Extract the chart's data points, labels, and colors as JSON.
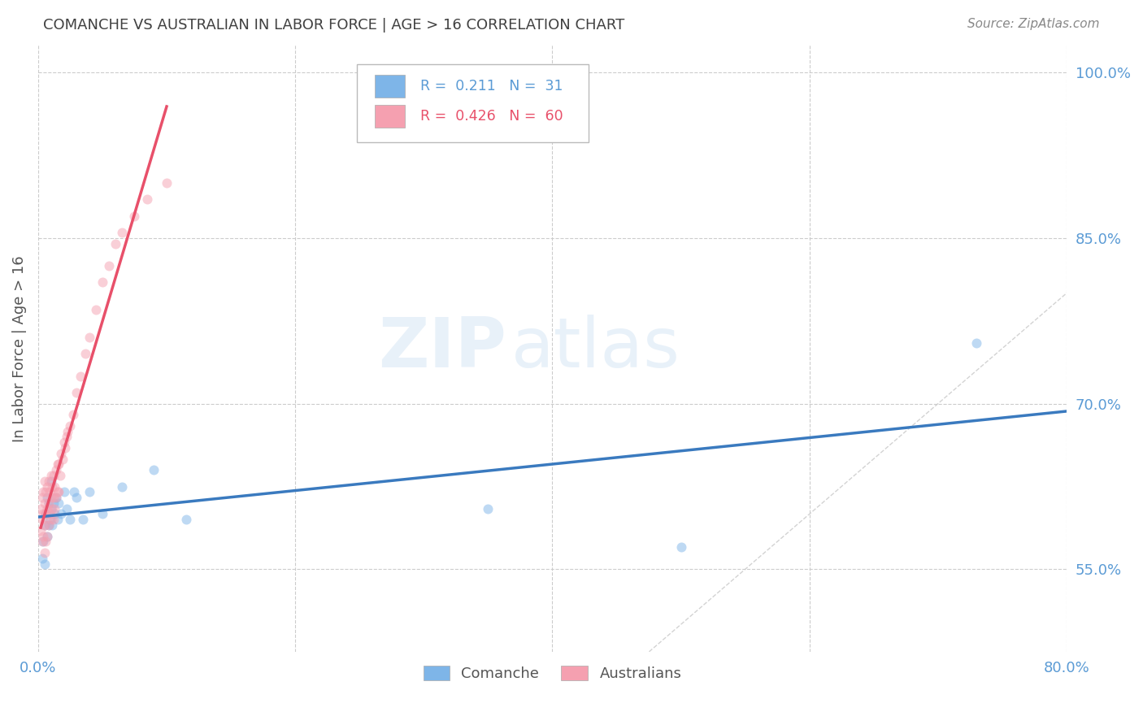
{
  "title": "COMANCHE VS AUSTRALIAN IN LABOR FORCE | AGE > 16 CORRELATION CHART",
  "source": "Source: ZipAtlas.com",
  "ylabel": "In Labor Force | Age > 16",
  "xlim": [
    0.0,
    0.8
  ],
  "ylim": [
    0.475,
    1.025
  ],
  "xticks": [
    0.0,
    0.8
  ],
  "xticklabels": [
    "0.0%",
    "80.0%"
  ],
  "yticks_right": [
    0.55,
    0.7,
    0.85,
    1.0
  ],
  "yticklabels_right": [
    "55.0%",
    "70.0%",
    "85.0%",
    "100.0%"
  ],
  "watermark_zip": "ZIP",
  "watermark_atlas": "atlas",
  "comanche_x": [
    0.003,
    0.004,
    0.005,
    0.005,
    0.006,
    0.007,
    0.007,
    0.008,
    0.008,
    0.009,
    0.01,
    0.01,
    0.011,
    0.012,
    0.013,
    0.014,
    0.015,
    0.016,
    0.018,
    0.02,
    0.022,
    0.025,
    0.028,
    0.03,
    0.035,
    0.04,
    0.05,
    0.065,
    0.09,
    0.115,
    0.35,
    0.5,
    0.73
  ],
  "comanche_y": [
    0.56,
    0.575,
    0.59,
    0.555,
    0.6,
    0.58,
    0.615,
    0.59,
    0.61,
    0.595,
    0.605,
    0.63,
    0.59,
    0.61,
    0.6,
    0.615,
    0.595,
    0.61,
    0.6,
    0.62,
    0.605,
    0.595,
    0.62,
    0.615,
    0.595,
    0.62,
    0.6,
    0.625,
    0.64,
    0.595,
    0.605,
    0.57,
    0.755
  ],
  "australians_x": [
    0.002,
    0.002,
    0.003,
    0.003,
    0.003,
    0.004,
    0.004,
    0.004,
    0.005,
    0.005,
    0.005,
    0.005,
    0.006,
    0.006,
    0.006,
    0.007,
    0.007,
    0.007,
    0.008,
    0.008,
    0.008,
    0.009,
    0.009,
    0.01,
    0.01,
    0.01,
    0.011,
    0.011,
    0.012,
    0.012,
    0.012,
    0.013,
    0.013,
    0.014,
    0.014,
    0.015,
    0.015,
    0.016,
    0.016,
    0.017,
    0.018,
    0.019,
    0.02,
    0.021,
    0.022,
    0.023,
    0.025,
    0.027,
    0.03,
    0.033,
    0.037,
    0.04,
    0.045,
    0.05,
    0.055,
    0.06,
    0.065,
    0.075,
    0.085,
    0.1
  ],
  "australians_y": [
    0.585,
    0.605,
    0.575,
    0.595,
    0.615,
    0.58,
    0.6,
    0.62,
    0.565,
    0.59,
    0.61,
    0.63,
    0.575,
    0.6,
    0.62,
    0.58,
    0.605,
    0.625,
    0.59,
    0.61,
    0.63,
    0.6,
    0.62,
    0.595,
    0.615,
    0.635,
    0.605,
    0.625,
    0.595,
    0.615,
    0.635,
    0.605,
    0.625,
    0.615,
    0.64,
    0.62,
    0.645,
    0.62,
    0.645,
    0.635,
    0.655,
    0.65,
    0.665,
    0.66,
    0.67,
    0.675,
    0.68,
    0.69,
    0.71,
    0.725,
    0.745,
    0.76,
    0.785,
    0.81,
    0.825,
    0.845,
    0.855,
    0.87,
    0.885,
    0.9
  ],
  "comanche_color": "#7eb5e8",
  "australians_color": "#f5a0b0",
  "comanche_line_color": "#3a7abf",
  "australians_line_color": "#e8506a",
  "ref_line_color": "#c8c8c8",
  "background_color": "#ffffff",
  "grid_color": "#cccccc",
  "title_color": "#404040",
  "axis_label_color": "#555555",
  "tick_color": "#5b9bd5",
  "source_color": "#888888",
  "marker_size": 75,
  "marker_alpha": 0.5
}
